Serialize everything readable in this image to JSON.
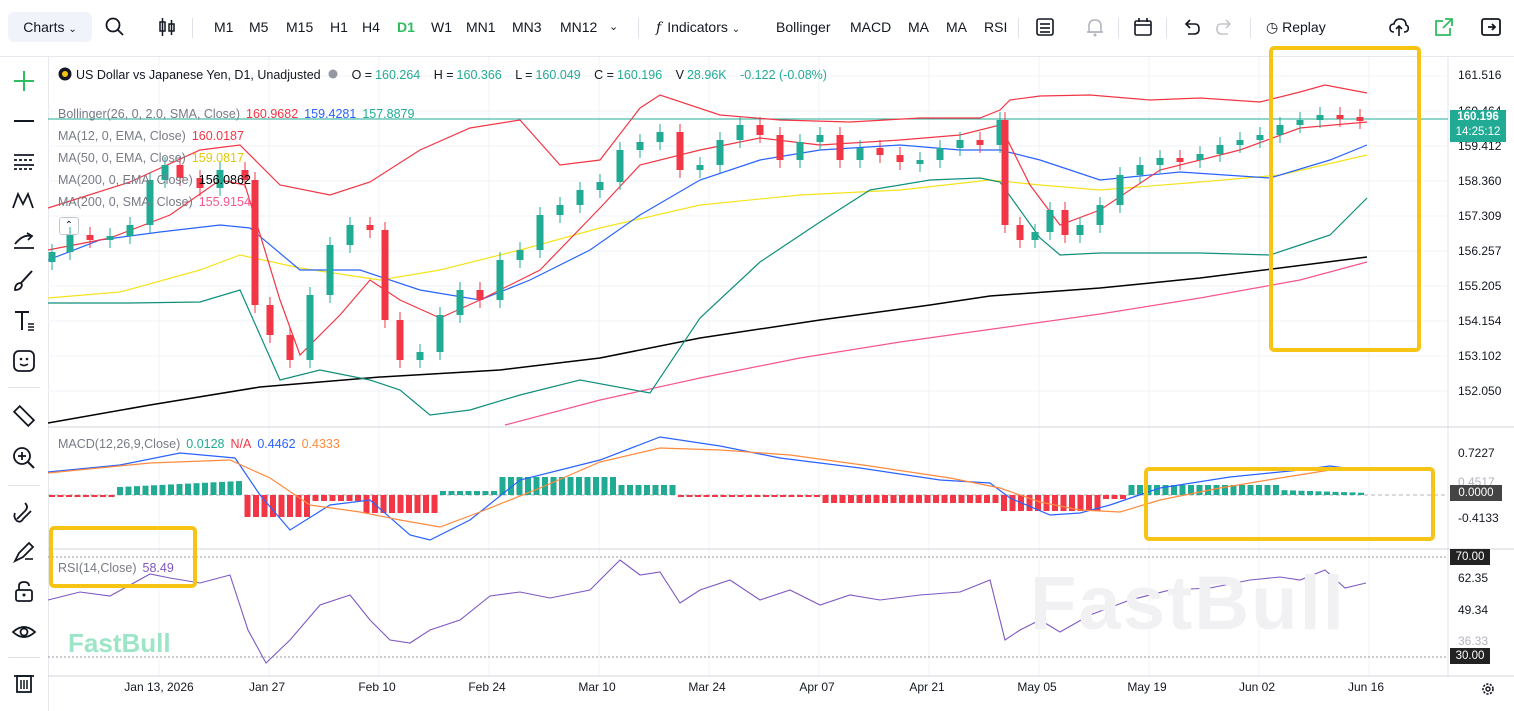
{
  "toolbar": {
    "charts_label": "Charts",
    "timeframes": [
      "M1",
      "M5",
      "M15",
      "H1",
      "H4",
      "D1",
      "W1",
      "MN1",
      "MN3",
      "MN12"
    ],
    "active_timeframe": "D1",
    "indicators_label": "Indicators",
    "favorites": [
      "Bollinger",
      "MACD",
      "MA",
      "MA",
      "RSI"
    ],
    "replay_label": "Replay"
  },
  "symbol": {
    "title": "US Dollar vs Japanese Yen, D1, Unadjusted",
    "o_label": "O =",
    "o": "160.264",
    "h_label": "H =",
    "h": "160.366",
    "l_label": "L =",
    "l": "160.049",
    "c_label": "C =",
    "c": "160.196",
    "v_label": "V",
    "v": "28.96K",
    "change": "-0.122 (-0.08%)"
  },
  "indicators": {
    "bollinger": {
      "label": "Bollinger(26, 0, 2.0, SMA, Close)",
      "v1": "160.9682",
      "v2": "159.4281",
      "v3": "157.8879"
    },
    "ma12": {
      "label": "MA(12, 0, EMA, Close)",
      "value": "160.0187"
    },
    "ma50": {
      "label": "MA(50, 0, EMA, Close)",
      "value": "159.0817"
    },
    "ma200e": {
      "label": "MA(200, 0, EMA, Close)",
      "value": "156.0862"
    },
    "ma200s": {
      "label": "MA(200, 0, SMA, Close)",
      "value": "155.9154"
    },
    "macd": {
      "label": "MACD(12,26,9,Close)",
      "v1": "0.0128",
      "v2": "N/A",
      "v3": "0.4462",
      "v4": "0.4333"
    },
    "rsi": {
      "label": "RSI(14,Close)",
      "value": "58.49"
    }
  },
  "price_axis": [
    "161.516",
    "160.464",
    "159.412",
    "158.360",
    "157.309",
    "156.257",
    "155.205",
    "154.154",
    "153.102",
    "152.050"
  ],
  "last_price": {
    "price": "160.196",
    "countdown": "14:25:12"
  },
  "macd_axis": [
    "0.7227",
    "0.4517",
    "0.0000",
    "-0.4133"
  ],
  "rsi_axis": [
    "70.00",
    "62.35",
    "49.34",
    "36.33",
    "30.00"
  ],
  "time_axis": [
    "Jan 13, 2026",
    "Jan 27",
    "Feb 10",
    "Feb 24",
    "Mar 10",
    "Mar 24",
    "Apr 07",
    "Apr 21",
    "May 05",
    "May 19",
    "Jun 02",
    "Jun 16"
  ],
  "watermark": "FastBull",
  "colors": {
    "up": "#22ab94",
    "down": "#f23645",
    "bb": "#f23645",
    "ma12": "#f23645",
    "ma50": "#f5e31d",
    "ma200e": "#000000",
    "ma200s": "#f7568c",
    "macd": "#2962ff",
    "signal": "#ff8a3d",
    "rsi": "#7e57c2",
    "highlight": "#f5c414"
  }
}
